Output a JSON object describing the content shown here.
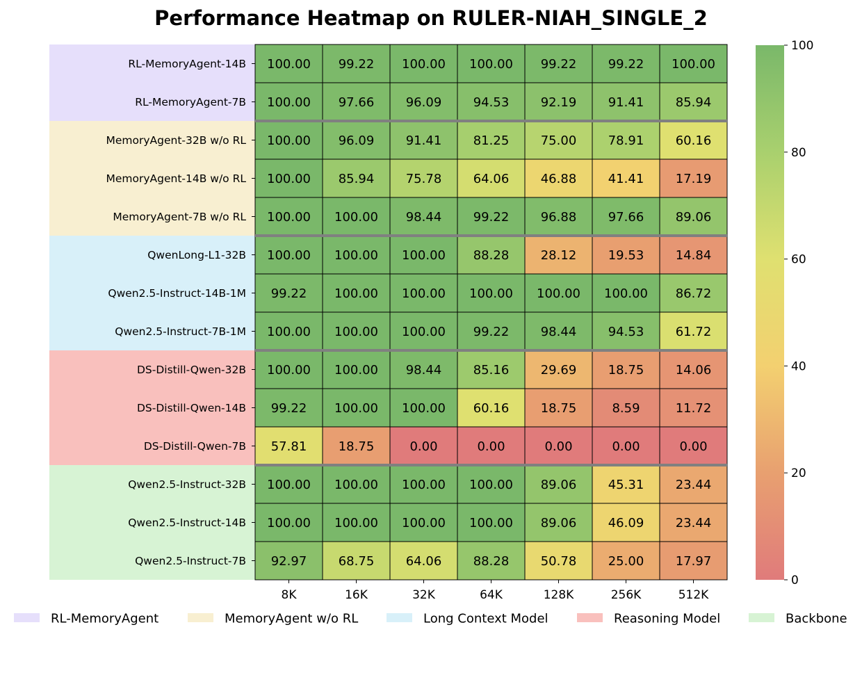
{
  "chart_data": {
    "type": "heatmap",
    "title": "Performance Heatmap on RULER-NIAH_SINGLE_2",
    "columns": [
      "8K",
      "16K",
      "32K",
      "64K",
      "128K",
      "256K",
      "512K"
    ],
    "rows": [
      "RL-MemoryAgent-14B",
      "RL-MemoryAgent-7B",
      "MemoryAgent-32B w/o RL",
      "MemoryAgent-14B w/o RL",
      "MemoryAgent-7B w/o RL",
      "QwenLong-L1-32B",
      "Qwen2.5-Instruct-14B-1M",
      "Qwen2.5-Instruct-7B-1M",
      "DS-Distill-Qwen-32B",
      "DS-Distill-Qwen-14B",
      "DS-Distill-Qwen-7B",
      "Qwen2.5-Instruct-32B",
      "Qwen2.5-Instruct-14B",
      "Qwen2.5-Instruct-7B"
    ],
    "values": [
      [
        100.0,
        99.22,
        100.0,
        100.0,
        99.22,
        99.22,
        100.0
      ],
      [
        100.0,
        97.66,
        96.09,
        94.53,
        92.19,
        91.41,
        85.94
      ],
      [
        100.0,
        96.09,
        91.41,
        81.25,
        75.0,
        78.91,
        60.16
      ],
      [
        100.0,
        85.94,
        75.78,
        64.06,
        46.88,
        41.41,
        17.19
      ],
      [
        100.0,
        100.0,
        98.44,
        99.22,
        96.88,
        97.66,
        89.06
      ],
      [
        100.0,
        100.0,
        100.0,
        88.28,
        28.12,
        19.53,
        14.84
      ],
      [
        99.22,
        100.0,
        100.0,
        100.0,
        100.0,
        100.0,
        86.72
      ],
      [
        100.0,
        100.0,
        100.0,
        99.22,
        98.44,
        94.53,
        61.72
      ],
      [
        100.0,
        100.0,
        98.44,
        85.16,
        29.69,
        18.75,
        14.06
      ],
      [
        99.22,
        100.0,
        100.0,
        60.16,
        18.75,
        8.59,
        11.72
      ],
      [
        57.81,
        18.75,
        0.0,
        0.0,
        0.0,
        0.0,
        0.0
      ],
      [
        100.0,
        100.0,
        100.0,
        100.0,
        89.06,
        45.31,
        23.44
      ],
      [
        100.0,
        100.0,
        100.0,
        100.0,
        89.06,
        46.09,
        23.44
      ],
      [
        92.97,
        68.75,
        64.06,
        88.28,
        50.78,
        25.0,
        17.97
      ]
    ],
    "value_format": "2 decimals",
    "vmin": 0,
    "vmax": 100,
    "colorbar_ticks": [
      0,
      20,
      40,
      60,
      80,
      100
    ],
    "colormap": [
      "#e07b7b",
      "#e8a070",
      "#f3d070",
      "#dfe070",
      "#a9d06e",
      "#7ab86a"
    ],
    "groups": [
      {
        "name": "RL-MemoryAgent",
        "start_row": 0,
        "count": 2,
        "color": "#e6dffb"
      },
      {
        "name": "MemoryAgent w/o RL",
        "start_row": 2,
        "count": 3,
        "color": "#f8efd1"
      },
      {
        "name": "Long Context Model",
        "start_row": 5,
        "count": 3,
        "color": "#d8f0f9"
      },
      {
        "name": "Reasoning Model",
        "start_row": 8,
        "count": 3,
        "color": "#f9c0bd"
      },
      {
        "name": "Backbone",
        "start_row": 11,
        "count": 3,
        "color": "#d7f3d4"
      }
    ],
    "group_separator_color": "#808080",
    "legend_position": "bottom"
  }
}
